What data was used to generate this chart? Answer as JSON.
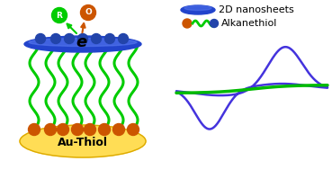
{
  "blue_color": "#2233bb",
  "green_color": "#00cc00",
  "orange_color": "#cc5500",
  "yellow_color": "#ffdd55",
  "yellow_edge": "#ddaa00",
  "nanosheet_blue": "#2244cc",
  "nanosheet_highlight": "#5577ee",
  "ball_blue": "#2244aa",
  "cv_blue_color": "#4433dd",
  "cv_green_color": "#00bb00",
  "background": "#ffffff",
  "title_text": "Au-Thiol",
  "legend_text1": "2D nanosheets",
  "legend_text2": "Alkanethiol",
  "label_R_color": "#00cc00",
  "label_O_color": "#cc5500",
  "label_e_color": "#000000",
  "text_fontsize": 8,
  "title_fontsize": 9
}
